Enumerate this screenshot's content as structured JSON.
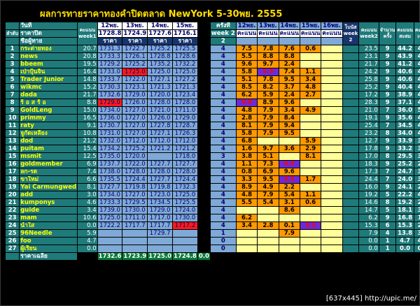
{
  "title": "ผลการทายราคาทองคำปิดตลาด NewYork  5-30พย. 2555",
  "watermark": "[637x445] http://upic.me/",
  "headers": {
    "rank": "ลำดับ",
    "day_label": "วันที่",
    "close_price_label": "ราคาปิด",
    "member_label": "ชื่อผู้ทาย",
    "score_week1": "คะแนน week1",
    "d12": "12พย.",
    "d13": "13พย.",
    "d14": "14พย.",
    "d15": "15พย.",
    "close12": "1728.8",
    "close13": "1724.9",
    "close14": "1727.6",
    "close15": "1716.1",
    "price_label": "ราคา",
    "times": "ครั้งที่",
    "week2": "week 2",
    "week_num": "2",
    "s12": "12พย.",
    "s13": "13พย.",
    "s14": "14พย.",
    "s15": "15พย.",
    "s16": "16พย.",
    "score_label": "คะแนน",
    "bonus": "โบนัส week 2",
    "score_week2": "คะแนน week2",
    "count": "จำนวน ครั้ง",
    "total": "คะแนน สะสม",
    "average": "คะแนน เฉลี่ย"
  },
  "rows": [
    {
      "rank": "1",
      "name": "กระต่ายทอง",
      "w1": "20.7",
      "p": [
        "1731.3",
        "1722.7",
        "1725.2",
        "1725.5"
      ],
      "red": [],
      "times": "4",
      "s": [
        "7.5",
        "7.8",
        "7.6",
        "0.6",
        ""
      ],
      "hot": [
        0,
        1,
        2,
        3
      ],
      "blue": [],
      "w2": "23.5",
      "cnt": "9",
      "tot": "44.2",
      "avg": "4.9"
    },
    {
      "rank": "2",
      "name": "news",
      "w1": "20.8",
      "p": [
        "1733.3",
        "1726.1",
        "1728.8",
        "1728.6"
      ],
      "red": [],
      "times": "4",
      "s": [
        "5.5",
        "8.8",
        "8.8",
        ""
      ],
      "hot": [
        0,
        1,
        2
      ],
      "blue": [],
      "w2": "23.1",
      "cnt": "9",
      "tot": "43.9",
      "avg": "4.9"
    },
    {
      "rank": "3",
      "name": "bbeem",
      "w1": "19.5",
      "p": [
        "1729.2",
        "1725.2",
        "1735.2",
        "1732.2"
      ],
      "red": [],
      "times": "4",
      "s": [
        "9.6",
        "9.7",
        "2.4",
        ""
      ],
      "hot": [
        0,
        1,
        2
      ],
      "blue": [],
      "w2": "21.7",
      "cnt": "9",
      "tot": "41.2",
      "avg": "4.6"
    },
    {
      "rank": "4",
      "name": "เป่าปุ้นจิ้น",
      "w1": "16.4",
      "p": [
        "1733.0",
        "1725.0",
        "1725.0",
        "1725.0"
      ],
      "red": [
        1
      ],
      "times": "4",
      "s": [
        "5.8",
        "9.9",
        "7.4",
        "1.1",
        ""
      ],
      "hot": [
        0,
        2,
        3
      ],
      "blue": [
        1
      ],
      "w2": "24.2",
      "cnt": "9",
      "tot": "40.6",
      "avg": "4.5"
    },
    {
      "rank": "5",
      "name": "Trader Junior",
      "w1": "14.8",
      "p": [
        "1733.7",
        "1722.0",
        "1727.1",
        "1727.2"
      ],
      "red": [],
      "times": "4",
      "s": [
        "5.1",
        "7.8",
        "9.5",
        "3.4",
        ""
      ],
      "hot": [
        0,
        1,
        2,
        3
      ],
      "blue": [],
      "w2": "25.8",
      "cnt": "9",
      "tot": "40.6",
      "avg": "4.5"
    },
    {
      "rank": "6",
      "name": "wikmc",
      "w1": "15.2",
      "p": [
        "1730.3",
        "1723.1",
        "1721.3",
        "1721.3"
      ],
      "red": [],
      "times": "4",
      "s": [
        "8.5",
        "8.2",
        "3.7",
        "4.8",
        ""
      ],
      "hot": [
        0,
        1,
        2,
        3
      ],
      "blue": [],
      "w2": "25.2",
      "cnt": "9",
      "tot": "40.4",
      "avg": "4.5"
    },
    {
      "rank": "7",
      "name": "dada",
      "w1": "21.7",
      "p": [
        "1732.6",
        "1729.0",
        "1720.0",
        "1723.4"
      ],
      "red": [],
      "times": "4",
      "s": [
        "6.2",
        "5.9",
        "2.4",
        "2.7",
        ""
      ],
      "hot": [
        0,
        1,
        2,
        3
      ],
      "blue": [],
      "w2": "17.2",
      "cnt": "9",
      "tot": "38.9",
      "avg": "4.3"
    },
    {
      "rank": "8",
      "name": "ร้ อ ส ร้ อ",
      "w1": "8.8",
      "p": [
        "1729.0",
        "1726.0",
        "1728.0",
        "1728.0"
      ],
      "red": [
        0
      ],
      "times": "4",
      "s": [
        "9.8",
        "8.9",
        "9.6",
        ""
      ],
      "hot": [
        1,
        2
      ],
      "blue": [
        0
      ],
      "w2": "28.3",
      "cnt": "9",
      "tot": "37.1",
      "avg": "4.1"
    },
    {
      "rank": "9",
      "name": "GoldLeng",
      "w1": "15.0",
      "p": [
        "1734.0",
        "1727.0",
        "1721.0",
        "1711.0"
      ],
      "red": [],
      "times": "4",
      "s": [
        "4.8",
        "7.9",
        "3.4",
        "4.9",
        ""
      ],
      "hot": [
        0,
        1,
        2,
        3
      ],
      "blue": [],
      "w2": "21.0",
      "cnt": "7",
      "tot": "36.0",
      "avg": "5.1"
    },
    {
      "rank": "10",
      "name": "primmy",
      "w1": "16.5",
      "p": [
        "1736.0",
        "1727.0",
        "1726.0",
        "1729.0"
      ],
      "red": [],
      "times": "4",
      "s": [
        "2.8",
        "7.9",
        "8.4",
        ""
      ],
      "hot": [
        0,
        1,
        2
      ],
      "blue": [],
      "w2": "19.1",
      "cnt": "9",
      "tot": "35.6",
      "avg": "4.0"
    },
    {
      "rank": "11",
      "name": "raty",
      "w1": "9.1",
      "p": [
        "1730.7",
        "1727.0",
        "1727.8",
        "1728.7"
      ],
      "red": [],
      "times": "4",
      "s": [
        "8.1",
        "7.9",
        "9.4",
        ""
      ],
      "hot": [
        0,
        1,
        2
      ],
      "blue": [],
      "w2": "25.4",
      "cnt": "7",
      "tot": "34.5",
      "avg": "4.9"
    },
    {
      "rank": "12",
      "name": "จูกัดเหลียง",
      "w1": "10.8",
      "p": [
        "1731.0",
        "1727.0",
        "1727.1",
        "1726.3"
      ],
      "red": [],
      "times": "4",
      "s": [
        "5.8",
        "7.9",
        "9.5",
        ""
      ],
      "hot": [
        0,
        1,
        2
      ],
      "blue": [],
      "w2": "23.2",
      "cnt": "8",
      "tot": "34.0",
      "avg": "4.3"
    },
    {
      "rank": "13",
      "name": "dod",
      "w1": "21.2",
      "p": [
        "1732.0",
        "1712.0",
        "1712.0",
        "1712.0"
      ],
      "red": [],
      "times": "4",
      "s": [
        "6.8",
        "",
        "",
        "5.9",
        ""
      ],
      "hot": [
        0,
        3
      ],
      "blue": [],
      "w2": "12.7",
      "cnt": "9",
      "tot": "33.9",
      "avg": "3.8"
    },
    {
      "rank": "14",
      "name": "puitam",
      "w1": "15.4",
      "p": [
        "1734.2",
        "1725.2",
        "1721.2",
        "1721.2"
      ],
      "red": [],
      "times": "4",
      "s": [
        "1.6",
        "9.7",
        "3.6",
        "2.9",
        ""
      ],
      "hot": [
        0,
        1,
        2,
        3
      ],
      "blue": [],
      "w2": "17.8",
      "cnt": "9",
      "tot": "33.2",
      "avg": "3.7"
    },
    {
      "rank": "15",
      "name": "msmit",
      "w1": "12.5",
      "p": [
        "1735.0",
        "1720.0",
        "",
        "1718.0"
      ],
      "red": [],
      "times": "3",
      "s": [
        "3.8",
        "5.1",
        "",
        "8.1",
        ""
      ],
      "hot": [
        0,
        1,
        3
      ],
      "blue": [],
      "w2": "17.0",
      "cnt": "8",
      "tot": "29.5",
      "avg": "3.7"
    },
    {
      "rank": "16",
      "name": "goldmember",
      "w1": "6.9",
      "p": [
        "1737.7",
        "1722.0",
        "1727.7",
        "1727.7"
      ],
      "red": [],
      "times": "4",
      "s": [
        "1.1",
        "7.3",
        "9.9",
        ""
      ],
      "hot": [
        0,
        1
      ],
      "blue": [
        2
      ],
      "w2": "18.3",
      "cnt": "9",
      "tot": "25.2",
      "avg": "2.8"
    },
    {
      "rank": "17",
      "name": "ลก-รต",
      "w1": "7.4",
      "p": [
        "1738.0",
        "1728.0",
        "1728.0",
        "1728.0"
      ],
      "red": [],
      "times": "4",
      "s": [
        "0.8",
        "6.9",
        "9.6",
        ""
      ],
      "hot": [
        0,
        1,
        2
      ],
      "blue": [],
      "w2": "17.3",
      "cnt": "7",
      "tot": "24.7",
      "avg": "3.5"
    },
    {
      "rank": "18",
      "name": "ขาใหม่",
      "w1": "6.6",
      "p": [
        "1735.5",
        "1724.4",
        "1727.7",
        "1724.4"
      ],
      "red": [],
      "times": "4",
      "s": [
        "3.3",
        "9.5",
        "9.9",
        "1.7",
        ""
      ],
      "hot": [
        0,
        1,
        3
      ],
      "blue": [
        2
      ],
      "w2": "24.4",
      "cnt": "7",
      "tot": "24.0",
      "avg": "3.4"
    },
    {
      "rank": "19",
      "name": "Yai Carmungwed",
      "w1": "8.1",
      "p": [
        "1727.7",
        "1719.8",
        "1719.8",
        "1732.3",
        "1722"
      ],
      "red": [],
      "times": "4",
      "s": [
        "8.9",
        "4.9",
        "2.2",
        ""
      ],
      "hot": [
        0,
        1,
        2
      ],
      "blue": [],
      "w2": "16.0",
      "cnt": "9",
      "tot": "24.1",
      "avg": "2.7"
    },
    {
      "rank": "20",
      "name": "add",
      "w1": "3.0",
      "p": [
        "1734.0",
        "1727.0",
        "1723.0",
        "1725.0"
      ],
      "red": [],
      "times": "4",
      "s": [
        "4.8",
        "7.9",
        "5.4",
        "1.1",
        ""
      ],
      "hot": [
        0,
        1,
        2,
        3
      ],
      "blue": [],
      "w2": "19.2",
      "cnt": "5",
      "tot": "22.2",
      "avg": "4.4"
    },
    {
      "rank": "21",
      "name": "kumponys",
      "w1": "4.6",
      "p": [
        "1733.3",
        "1729.5",
        "1734.5",
        "1725.5"
      ],
      "red": [],
      "times": "4",
      "s": [
        "5.5",
        "5.4",
        "3.1",
        "0.6",
        ""
      ],
      "hot": [
        0,
        1,
        2,
        3
      ],
      "blue": [],
      "w2": "14.6",
      "cnt": "8",
      "tot": "19.2",
      "avg": "2.4"
    },
    {
      "rank": "22",
      "name": "guide",
      "w1": "3.4",
      "p": [
        "1739.0",
        "1730.0",
        "1729.0",
        "1724.0"
      ],
      "red": [],
      "times": "4",
      "s": [
        "",
        "",
        "8.6",
        ""
      ],
      "hot": [
        2
      ],
      "blue": [],
      "w2": "14.7",
      "cnt": "5",
      "tot": "18.1",
      "avg": "3.6"
    },
    {
      "rank": "23",
      "name": "mam",
      "w1": "10.6",
      "p": [
        "1725.0",
        "1711.0",
        "1717.0",
        "1730.0"
      ],
      "red": [],
      "times": "4",
      "s": [
        "6.2",
        "",
        "",
        "",
        ""
      ],
      "hot": [
        0
      ],
      "blue": [],
      "w2": "6.2",
      "cnt": "9",
      "tot": "16.8",
      "avg": "1.9"
    },
    {
      "rank": "24",
      "name": "น้ำใส",
      "w1": "0.0",
      "p": [
        "1722.2",
        "1717.7",
        "1717.7",
        "1717.2"
      ],
      "red": [
        3
      ],
      "times": "4",
      "s": [
        "3.4",
        "2.8",
        "0.1",
        "9.0",
        ""
      ],
      "hot": [
        0,
        1,
        2
      ],
      "blue": [
        3
      ],
      "w2": "15.3",
      "cnt": "6",
      "tot": "15.3",
      "avg": "2.6"
    },
    {
      "rank": "25",
      "name": "96Needle",
      "w1": "5.9",
      "p": [
        "",
        "",
        "1729.7",
        ""
      ],
      "red": [],
      "times": "1",
      "s": [
        "",
        "",
        "7.9",
        "",
        ""
      ],
      "hot": [
        2
      ],
      "blue": [],
      "w2": "7.9",
      "cnt": "4",
      "tot": "13.8",
      "avg": "3.5"
    },
    {
      "rank": "26",
      "name": "foo",
      "w1": "4.7",
      "p": [
        "",
        "",
        "",
        ""
      ],
      "red": [],
      "times": "0",
      "s": [
        "",
        "",
        "",
        "",
        ""
      ],
      "hot": [],
      "blue": [],
      "w2": "0.0",
      "cnt": "1",
      "tot": "4.7",
      "avg": "4.7"
    },
    {
      "rank": "27",
      "name": "ผู้เรียน",
      "w1": "0.0",
      "p": [
        "",
        "",
        "",
        ""
      ],
      "red": [],
      "times": "0",
      "s": [
        "",
        "",
        "",
        "",
        ""
      ],
      "hot": [],
      "blue": [],
      "w2": "0.0",
      "cnt": "1",
      "tot": "0.0",
      "avg": "0.0"
    }
  ],
  "avg_row": {
    "label": "ราคาเฉลี่ย",
    "values": [
      "1732.6",
      "1723.9",
      "1725.0",
      "1724.8",
      "0.0"
    ]
  }
}
